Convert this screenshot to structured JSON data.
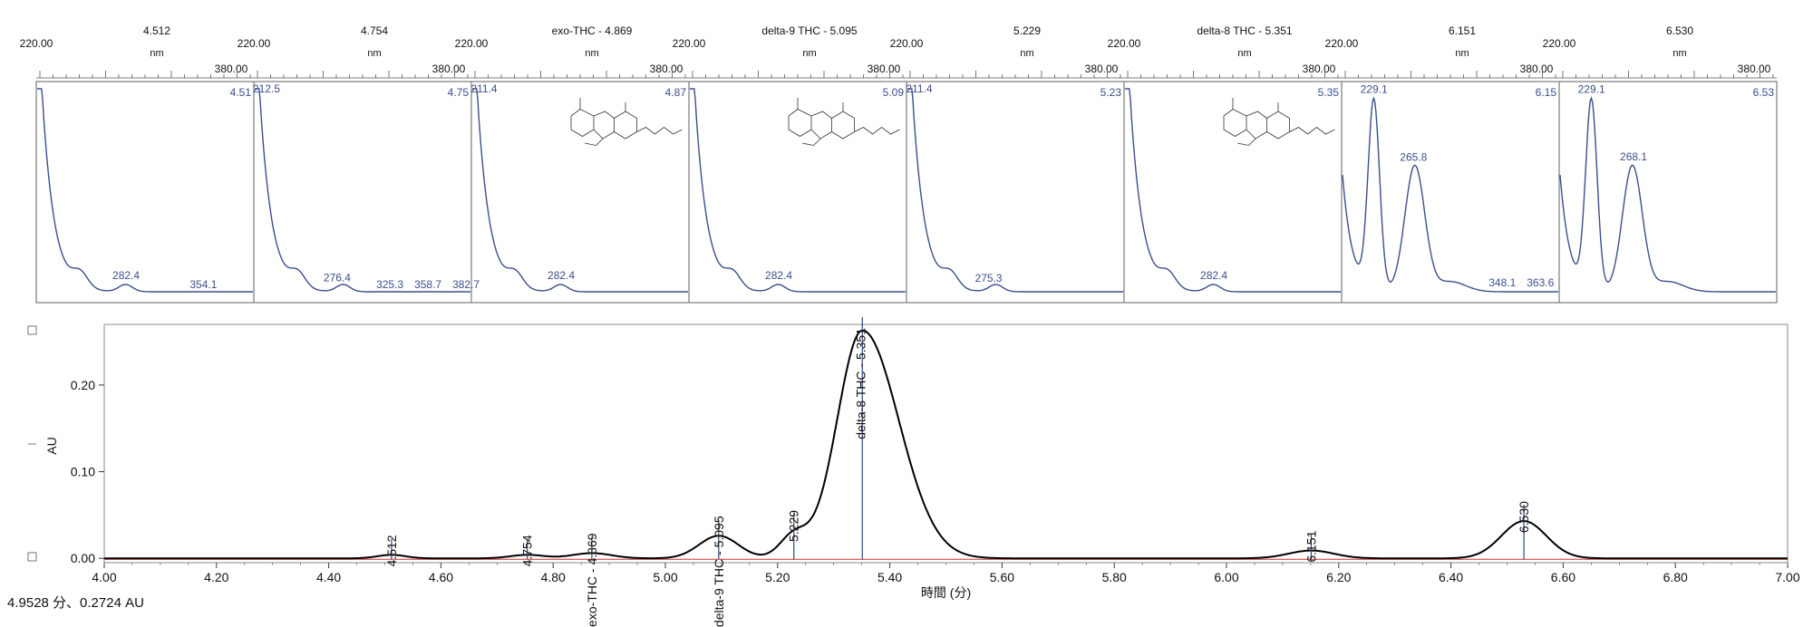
{
  "status_readout": "4.9528 分、0.2724 AU",
  "spectra": [
    {
      "title": "4.512",
      "rt_label": "4.51",
      "shape": "decay",
      "nm_min": "220.00",
      "nm_unit": "nm",
      "nm_max": "380.00",
      "peaks": [
        {
          "nm": 282.4,
          "label": "282.4"
        },
        {
          "nm": 354.1,
          "label": "354.1"
        }
      ],
      "structure": false
    },
    {
      "title": "4.754",
      "rt_label": "4.75",
      "shape": "decay",
      "nm_min": "220.00",
      "nm_unit": "nm",
      "nm_max": "380.00",
      "peaks": [
        {
          "nm": 212.5,
          "label": "212.5"
        },
        {
          "nm": 276.4,
          "label": "276.4"
        },
        {
          "nm": 325.3,
          "label": "325.3"
        },
        {
          "nm": 358.7,
          "label": "358.7"
        },
        {
          "nm": 382.7,
          "label": "382.7"
        }
      ],
      "structure": false
    },
    {
      "title": "exo-THC - 4.869",
      "rt_label": "4.87",
      "shape": "decay",
      "nm_min": "220.00",
      "nm_unit": "nm",
      "nm_max": "380.00",
      "peaks": [
        {
          "nm": 211.4,
          "label": "211.4"
        },
        {
          "nm": 282.4,
          "label": "282.4"
        }
      ],
      "structure": true
    },
    {
      "title": "delta-9 THC - 5.095",
      "rt_label": "5.09",
      "shape": "decay",
      "nm_min": "220.00",
      "nm_unit": "nm",
      "nm_max": "380.00",
      "peaks": [
        {
          "nm": 282.4,
          "label": "282.4"
        }
      ],
      "structure": true
    },
    {
      "title": "5.229",
      "rt_label": "5.23",
      "shape": "decay",
      "nm_min": "220.00",
      "nm_unit": "nm",
      "nm_max": "380.00",
      "peaks": [
        {
          "nm": 211.4,
          "label": "211.4"
        },
        {
          "nm": 275.3,
          "label": "275.3"
        }
      ],
      "structure": false
    },
    {
      "title": "delta-8 THC - 5.351",
      "rt_label": "5.35",
      "shape": "decay",
      "nm_min": "220.00",
      "nm_unit": "nm",
      "nm_max": "380.00",
      "peaks": [
        {
          "nm": 282.4,
          "label": "282.4"
        }
      ],
      "structure": true
    },
    {
      "title": "6.151",
      "rt_label": "6.15",
      "shape": "double",
      "nm_min": "220.00",
      "nm_unit": "nm",
      "nm_max": "380.00",
      "peaks": [
        {
          "nm": 229.1,
          "label": "229.1"
        },
        {
          "nm": 265.8,
          "label": "265.8"
        },
        {
          "nm": 348.1,
          "label": "348.1"
        },
        {
          "nm": 363.6,
          "label": "363.6"
        }
      ],
      "structure": false
    },
    {
      "title": "6.530",
      "rt_label": "6.53",
      "shape": "double",
      "nm_min": "220.00",
      "nm_unit": "nm",
      "nm_max": "380.00",
      "peaks": [
        {
          "nm": 229.1,
          "label": "229.1"
        },
        {
          "nm": 268.1,
          "label": "268.1"
        }
      ],
      "structure": false
    }
  ],
  "chart_data": {
    "type": "line",
    "xlabel": "時間 (分)",
    "ylabel": "AU",
    "xlim": [
      4.0,
      7.0
    ],
    "ylim": [
      -0.005,
      0.27
    ],
    "x_ticks": [
      {
        "value": 4.0,
        "label": "4.00"
      },
      {
        "value": 4.2,
        "label": "4.20"
      },
      {
        "value": 4.4,
        "label": "4.40"
      },
      {
        "value": 4.6,
        "label": "4.60"
      },
      {
        "value": 4.8,
        "label": "4.80"
      },
      {
        "value": 5.0,
        "label": "5.00"
      },
      {
        "value": 5.2,
        "label": "5.20"
      },
      {
        "value": 5.4,
        "label": "5.40"
      },
      {
        "value": 5.6,
        "label": "5.60"
      },
      {
        "value": 5.8,
        "label": "5.80"
      },
      {
        "value": 6.0,
        "label": "6.00"
      },
      {
        "value": 6.2,
        "label": "6.20"
      },
      {
        "value": 6.4,
        "label": "6.40"
      },
      {
        "value": 6.6,
        "label": "6.60"
      },
      {
        "value": 6.8,
        "label": "6.80"
      },
      {
        "value": 7.0,
        "label": "7.00"
      }
    ],
    "y_ticks": [
      {
        "value": 0.0,
        "label": "0.00"
      },
      {
        "value": 0.1,
        "label": "0.10"
      },
      {
        "value": 0.2,
        "label": "0.20"
      }
    ],
    "peaks": [
      {
        "rt": 4.512,
        "height": 0.004,
        "sigma": 0.025,
        "label": "4.512"
      },
      {
        "rt": 4.754,
        "height": 0.004,
        "sigma": 0.03,
        "label": "4.754"
      },
      {
        "rt": 4.869,
        "height": 0.006,
        "sigma": 0.035,
        "label": "exo-THC - 4.869"
      },
      {
        "rt": 5.095,
        "height": 0.026,
        "sigma": 0.035,
        "label": "delta-9 THC - 5.095"
      },
      {
        "rt": 5.229,
        "height": 0.026,
        "sigma": 0.025,
        "label": "5.229"
      },
      {
        "rt": 5.351,
        "height": 0.263,
        "sigma": 0.045,
        "label": "delta-8 THC - 5.351"
      },
      {
        "rt": 6.151,
        "height": 0.009,
        "sigma": 0.04,
        "label": "6.151"
      },
      {
        "rt": 6.53,
        "height": 0.043,
        "sigma": 0.04,
        "label": "6.530"
      }
    ],
    "line_color": "#000000",
    "baseline_color": "#cc3333",
    "marker_color": "#2b4a7a"
  },
  "colors": {
    "spectrum_line": "#3b4f8c",
    "panel_border": "#7a7a7a"
  }
}
